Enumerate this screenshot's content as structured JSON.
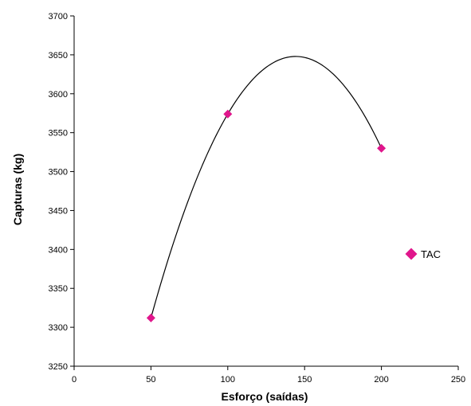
{
  "chart_data": {
    "type": "scatter",
    "xlabel": "Esforço (saídas)",
    "ylabel": "Capturas (kg)",
    "xlim": [
      0,
      250
    ],
    "ylim": [
      3250,
      3700
    ],
    "x_ticks": [
      "0",
      "50",
      "100",
      "150",
      "200",
      "250"
    ],
    "y_ticks": [
      "3250",
      "3300",
      "3350",
      "3400",
      "3450",
      "3500",
      "3550",
      "3600",
      "3650",
      "3700"
    ],
    "grid": false,
    "series": [
      {
        "name": "",
        "mark": "diamond",
        "color": "#e0168c",
        "points": [
          {
            "x": 50,
            "y": 3312
          },
          {
            "x": 100,
            "y": 3574
          },
          {
            "x": 200,
            "y": 3530
          }
        ]
      }
    ],
    "trendline": {
      "type": "polynomial-2",
      "color": "#000000",
      "x_range": [
        50,
        200
      ]
    },
    "legend": {
      "position": "right",
      "label": "TAC",
      "color": "#e0168c",
      "mark": "diamond"
    }
  }
}
